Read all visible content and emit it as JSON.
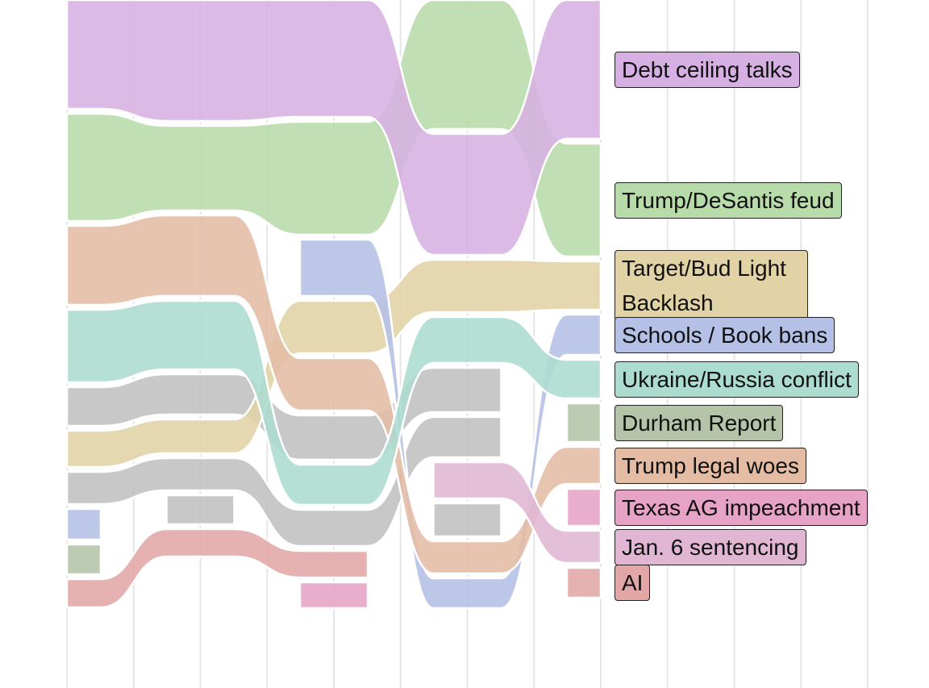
{
  "chart_data": {
    "type": "bump",
    "series": [
      {
        "name": "Trump/DeSantis feud",
        "color": "#b8dbaa",
        "values": [
          133,
          105,
          140,
          160,
          140
        ]
      },
      {
        "name": "Debt ceiling talks",
        "color": "#d7b0e3",
        "values": [
          135,
          150,
          145,
          150,
          172
        ]
      },
      {
        "name": "Target/Bud Light Backlash",
        "color": "#e1d3a6",
        "values": [
          45,
          42,
          65,
          65,
          60
        ]
      },
      {
        "name": "Schools / Book bans",
        "color": "#b4c0e6",
        "values": [
          38,
          null,
          70,
          37,
          50
        ]
      },
      {
        "name": "Trump legal woes",
        "color": "#e4bca4",
        "values": [
          98,
          100,
          65,
          40,
          46
        ]
      },
      {
        "name": "Ukraine/Russia conflict",
        "color": "#acdccf",
        "values": [
          90,
          85,
          50,
          57,
          48
        ]
      },
      {
        "name": "Texas AG impeachment",
        "color": "#e7a3c6",
        "values": [
          null,
          null,
          32,
          null,
          46
        ]
      },
      {
        "name": "Durham Report",
        "color": "#b5c4a8",
        "values": [
          37,
          null,
          null,
          null,
          48
        ]
      },
      {
        "name": "Jan. 6 sentencing",
        "color": "#e0b6d3",
        "values": [
          null,
          null,
          null,
          45,
          40
        ]
      },
      {
        "name": "AI",
        "color": "#e3a6a6",
        "values": [
          35,
          34,
          33,
          null,
          37
        ]
      },
      {
        "color": "#c0c0c0",
        "values": [
          48,
          50,
          55,
          55,
          null
        ]
      },
      {
        "color": "#c0c0c0",
        "values": [
          40,
          40,
          45,
          50,
          null
        ]
      },
      {
        "color": "#c0c0c0",
        "values": [
          null,
          36,
          null,
          41,
          null
        ]
      }
    ],
    "grid": true
  }
}
